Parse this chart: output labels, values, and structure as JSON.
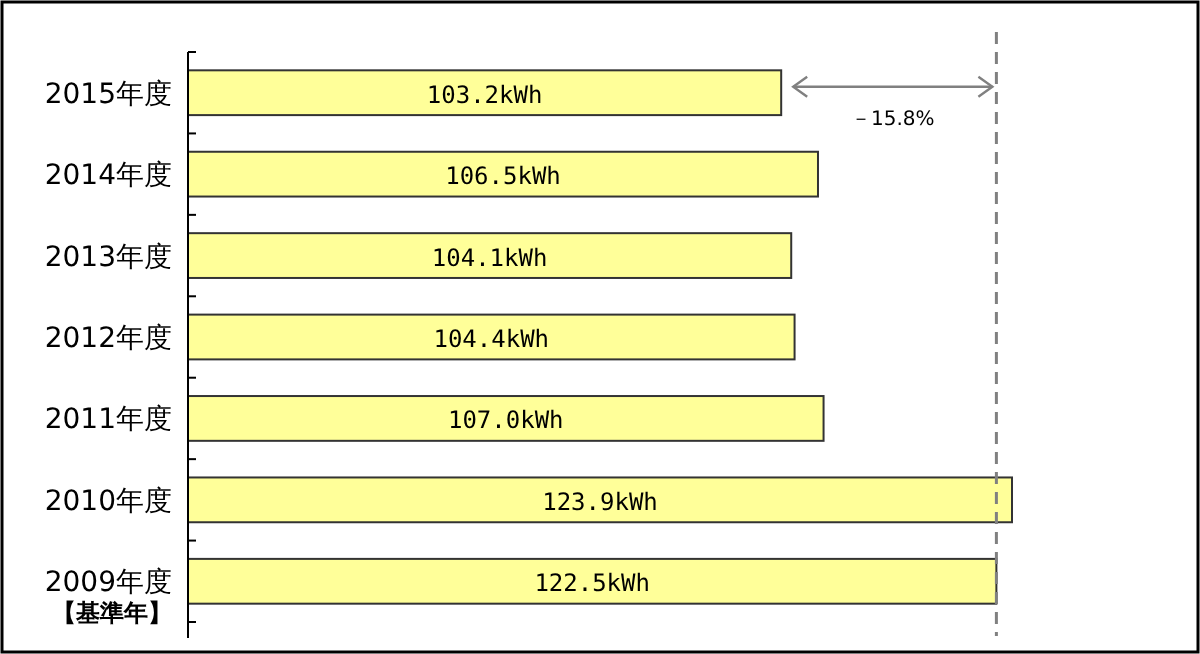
{
  "chart_data": {
    "type": "bar",
    "orientation": "horizontal",
    "categories": [
      "2015年度",
      "2014年度",
      "2013年度",
      "2012年度",
      "2011年度",
      "2010年度",
      "2009年度"
    ],
    "values": [
      103.2,
      106.5,
      104.1,
      104.4,
      107.0,
      123.9,
      122.5
    ],
    "value_labels": [
      "103.2kWh",
      "106.5kWh",
      "104.1kWh",
      "104.4kWh",
      "107.0kWh",
      "123.9kWh",
      "122.5kWh"
    ],
    "color": "#ffff99",
    "xlim": [
      50,
      123.9
    ],
    "tick_labels": "y",
    "ref_lines": [
      {
        "axis": "x",
        "value": 122.5,
        "line_style": "dashed",
        "color": "#808080"
      }
    ],
    "annotations": [
      "－15.8%",
      "【基準年】"
    ]
  }
}
